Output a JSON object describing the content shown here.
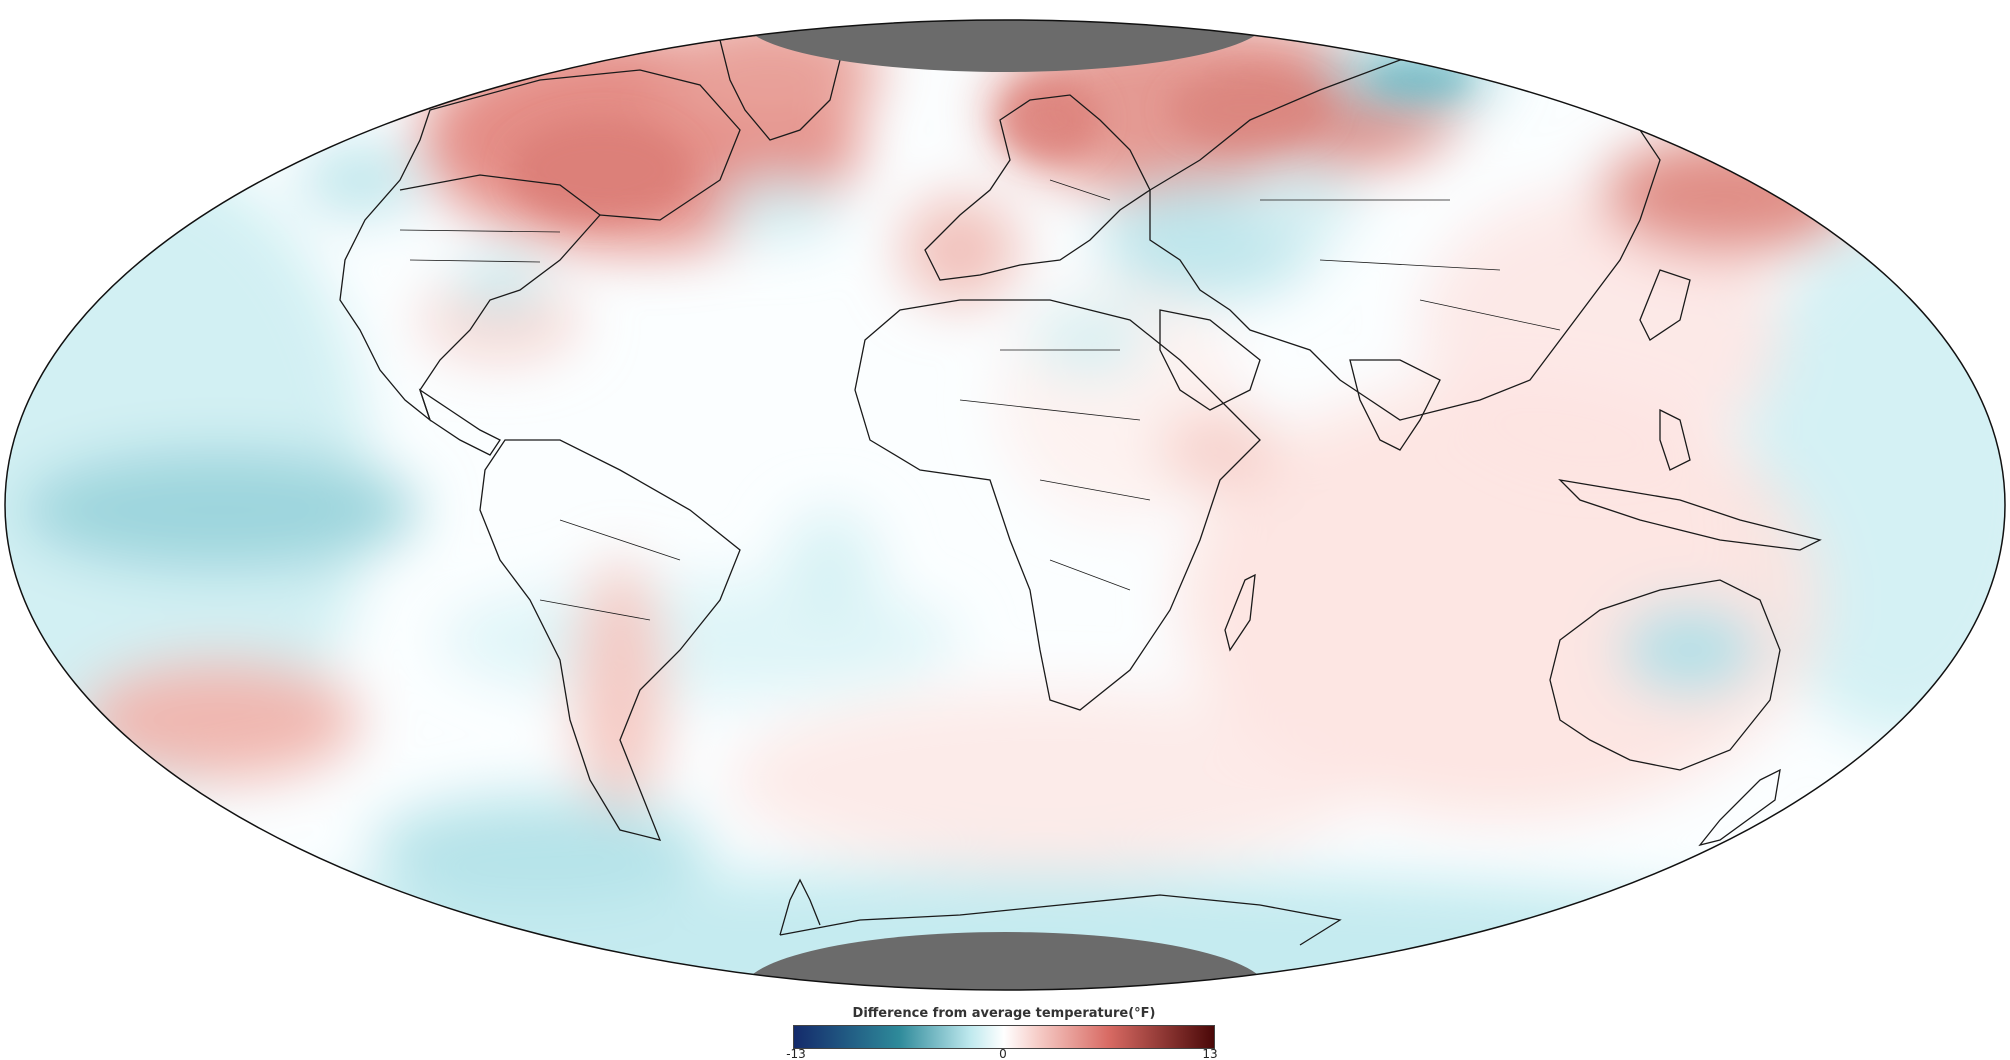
{
  "legend": {
    "title": "Difference from average temperature(°F)",
    "min_label": "-13",
    "mid_label": "0",
    "max_label": "13",
    "min": -13,
    "max": 13,
    "colors": {
      "cold_extreme": "#142a6b",
      "cold_mid": "#2e8a9a",
      "neutral": "#ffffff",
      "warm_mid": "#d86a63",
      "warm_extreme": "#4a0808"
    }
  },
  "map": {
    "projection": "Mollweide",
    "no_data_color": "#6b6b6b",
    "no_data_regions": [
      "north-pole",
      "south-pole"
    ],
    "anomaly_regions": [
      {
        "name": "northeastern-canada",
        "value": 7
      },
      {
        "name": "greenland-labrador",
        "value": 6
      },
      {
        "name": "northern-europe",
        "value": 6
      },
      {
        "name": "siberia",
        "value": 7
      },
      {
        "name": "eastern-russia-pacific",
        "value": 5
      },
      {
        "name": "south-pacific",
        "value": 4
      },
      {
        "name": "western-europe",
        "value": 3
      },
      {
        "name": "patagonia",
        "value": 3
      },
      {
        "name": "east-africa",
        "value": 2
      },
      {
        "name": "central-asia",
        "value": -4
      },
      {
        "name": "barents-sea",
        "value": -5
      },
      {
        "name": "tropical-east-pacific",
        "value": -3
      },
      {
        "name": "north-pacific",
        "value": -3
      },
      {
        "name": "southern-ocean",
        "value": -3
      },
      {
        "name": "northern-australia",
        "value": -3
      },
      {
        "name": "eastern-us",
        "value": -2
      }
    ]
  }
}
